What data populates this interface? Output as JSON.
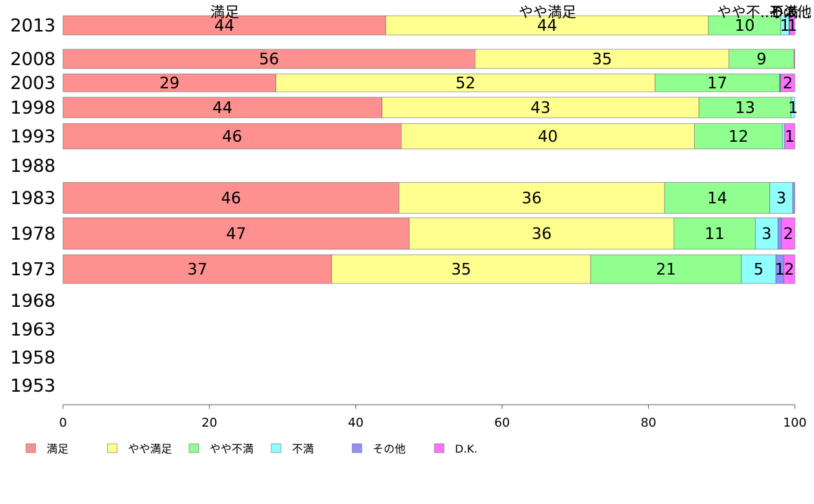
{
  "chart_data": {
    "type": "bar",
    "orientation": "horizontal",
    "stacked": true,
    "categories": [
      "2013",
      "2008",
      "2003",
      "1998",
      "1993",
      "1988",
      "1983",
      "1978",
      "1973",
      "1968",
      "1963",
      "1958",
      "1953"
    ],
    "series": [
      {
        "name": "満足",
        "color": "#ff9090",
        "values": [
          44.1,
          56.3,
          29.1,
          43.6,
          46.2,
          null,
          45.9,
          47.3,
          36.7,
          null,
          null,
          null,
          null
        ]
      },
      {
        "name": "やや満足",
        "color": "#ffff90",
        "values": [
          44.1,
          34.7,
          51.8,
          43.3,
          40.1,
          null,
          36.3,
          36.2,
          35.4,
          null,
          null,
          null,
          null
        ]
      },
      {
        "name": "やや不満",
        "color": "#90ff90",
        "values": [
          9.9,
          8.9,
          17.0,
          12.6,
          12.0,
          null,
          14.4,
          11.1,
          20.6,
          null,
          null,
          null,
          null
        ]
      },
      {
        "name": "不満",
        "color": "#90ffff",
        "values": [
          1.1,
          0.0,
          0.1,
          0.5,
          0.3,
          null,
          3.1,
          3.1,
          4.7,
          null,
          null,
          null,
          null
        ]
      },
      {
        "name": "その他",
        "color": "#9090ff",
        "values": [
          0.1,
          0.0,
          0.1,
          0.0,
          0.0,
          null,
          0.3,
          0.5,
          1.1,
          null,
          null,
          null,
          null
        ]
      },
      {
        "name": "D.K.",
        "color": "#ff70ff",
        "values": [
          0.7,
          0.1,
          1.9,
          0.0,
          1.4,
          null,
          0.0,
          1.8,
          1.5,
          null,
          null,
          null,
          null
        ]
      }
    ],
    "segment_labels": [
      [
        "44",
        "44",
        "10",
        "1",
        "",
        "1"
      ],
      [
        "56",
        "35",
        "9",
        "",
        "",
        ""
      ],
      [
        "29",
        "52",
        "17",
        "",
        "",
        "2"
      ],
      [
        "44",
        "43",
        "13",
        "1",
        "",
        ""
      ],
      [
        "46",
        "40",
        "12",
        "",
        "",
        "1"
      ],
      [
        "",
        "",
        "",
        "",
        "",
        ""
      ],
      [
        "46",
        "36",
        "14",
        "3",
        "",
        ""
      ],
      [
        "47",
        "36",
        "11",
        "3",
        "",
        "2"
      ],
      [
        "37",
        "35",
        "21",
        "5",
        "1",
        "2"
      ],
      [
        "",
        "",
        "",
        "",
        "",
        ""
      ],
      [
        "",
        "",
        "",
        "",
        "",
        ""
      ],
      [
        "",
        "",
        "",
        "",
        "",
        ""
      ],
      [
        "",
        "",
        "",
        "",
        "",
        ""
      ]
    ],
    "column_headers": [
      "満足",
      "やや満足",
      "やや不...",
      "不満",
      "その他",
      "D.K..."
    ],
    "xlim": [
      0,
      100
    ],
    "xticks": [
      0,
      20,
      40,
      60,
      80,
      100
    ],
    "title": "",
    "xlabel": "",
    "ylabel": "",
    "grid": false,
    "legend_position": "bottom"
  }
}
